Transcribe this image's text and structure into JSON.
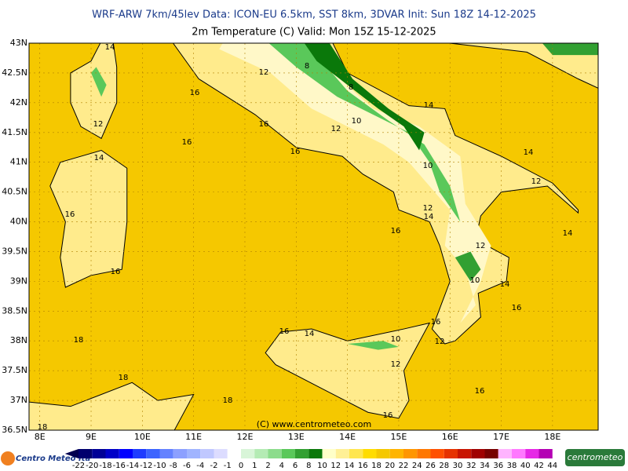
{
  "header": {
    "line1": "WRF-ARW 7km/45lev   Data: ICON-EU 6.5km, SST 8km, 3DVAR   Init: Sun 18Z 14-12-2025",
    "line2": "2m Temperature (C)   Valid: Mon 15Z 15-12-2025"
  },
  "map": {
    "xlim": [
      7.79,
      18.89
    ],
    "ylim": [
      36.5,
      43
    ],
    "xticks": [
      {
        "value": 8,
        "label": "8E"
      },
      {
        "value": 9,
        "label": "9E"
      },
      {
        "value": 10,
        "label": "10E"
      },
      {
        "value": 11,
        "label": "11E"
      },
      {
        "value": 12,
        "label": "12E"
      },
      {
        "value": 13,
        "label": "13E"
      },
      {
        "value": 14,
        "label": "14E"
      },
      {
        "value": 15,
        "label": "15E"
      },
      {
        "value": 16,
        "label": "16E"
      },
      {
        "value": 17,
        "label": "17E"
      },
      {
        "value": 18,
        "label": "18E"
      }
    ],
    "yticks": [
      {
        "value": 36.5,
        "label": "36.5N"
      },
      {
        "value": 37,
        "label": "37N"
      },
      {
        "value": 37.5,
        "label": "37.5N"
      },
      {
        "value": 38,
        "label": "38N"
      },
      {
        "value": 38.5,
        "label": "38.5N"
      },
      {
        "value": 39,
        "label": "39N"
      },
      {
        "value": 39.5,
        "label": "39.5N"
      },
      {
        "value": 40,
        "label": "40N"
      },
      {
        "value": 40.5,
        "label": "40.5N"
      },
      {
        "value": 41,
        "label": "41N"
      },
      {
        "value": 41.5,
        "label": "41.5N"
      },
      {
        "value": 42,
        "label": "42N"
      },
      {
        "value": 42.5,
        "label": "42.5N"
      },
      {
        "value": 43,
        "label": "43N"
      }
    ],
    "contour_labels": [
      "14",
      "12",
      "16",
      "16",
      "16",
      "12",
      "10",
      "16",
      "14",
      "16",
      "16",
      "16",
      "10",
      "14",
      "14",
      "12",
      "14",
      "12",
      "10",
      "14",
      "16",
      "16",
      "12",
      "18",
      "18",
      "18",
      "16",
      "14",
      "10",
      "12",
      "16",
      "16",
      "18",
      "12",
      "14",
      "12",
      "8",
      "8"
    ],
    "copyright": "(C) www.centrometeo.com"
  },
  "colorbar": {
    "labels": [
      "-22",
      "-20",
      "-18",
      "-16",
      "-14",
      "-12",
      "-10",
      "-8",
      "-6",
      "-4",
      "-2",
      "-1",
      "0",
      "1",
      "2",
      "4",
      "6",
      "8",
      "10",
      "12",
      "14",
      "16",
      "18",
      "20",
      "22",
      "24",
      "26",
      "28",
      "30",
      "32",
      "34",
      "36",
      "38",
      "40",
      "42",
      "44"
    ],
    "colors": [
      "#000050",
      "#00006e",
      "#000096",
      "#0000c8",
      "#0000ff",
      "#1e3cff",
      "#3c64ff",
      "#6482ff",
      "#8ca0ff",
      "#a0b4ff",
      "#c0c8ff",
      "#dcdcff",
      "#ffffff",
      "#d8f5d8",
      "#b4ebb4",
      "#8cdc8c",
      "#5ac85a",
      "#32a032",
      "#0a780a",
      "#ffffc8",
      "#fff096",
      "#ffe650",
      "#ffdc00",
      "#f5c800",
      "#ffb400",
      "#ff9600",
      "#ff7800",
      "#ff5000",
      "#e63200",
      "#c81400",
      "#a00000",
      "#780000",
      "#ffb4ff",
      "#ff78ff",
      "#e628e6",
      "#b400b4"
    ]
  },
  "logos": {
    "left": "Centro Meteo Ita",
    "right": "centrometeo"
  }
}
